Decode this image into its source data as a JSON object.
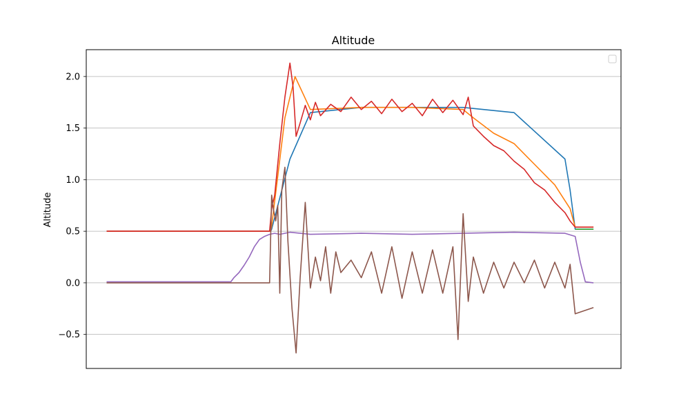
{
  "chart_data": {
    "type": "line",
    "title": "Altitude",
    "xlabel": "",
    "ylabel": "Altitude",
    "ylim": [
      -0.83,
      2.26
    ],
    "xlim": [
      -0.2,
      5.05
    ],
    "yticks": [
      -0.5,
      0.0,
      0.5,
      1.0,
      1.5,
      2.0
    ],
    "ytick_labels": [
      "−0.5",
      "0.0",
      "0.5",
      "1.0",
      "1.5",
      "2.0"
    ],
    "grid": "horizontal",
    "legend": "top-right, empty",
    "series": [
      {
        "color": "#1f77b4",
        "x": [
          0.0,
          1.61,
          1.62,
          1.8,
          2.0,
          2.5,
          3.0,
          3.5,
          4.0,
          4.5,
          4.55,
          4.6,
          4.78
        ],
        "y": [
          0.5,
          0.5,
          0.52,
          1.2,
          1.65,
          1.7,
          1.7,
          1.7,
          1.65,
          1.2,
          0.9,
          0.52,
          0.52
        ]
      },
      {
        "color": "#ff7f0e",
        "x": [
          0.0,
          1.61,
          1.62,
          1.75,
          1.85,
          2.0,
          2.5,
          3.0,
          3.5,
          3.6,
          3.8,
          4.0,
          4.2,
          4.4,
          4.55,
          4.6,
          4.78
        ],
        "y": [
          0.5,
          0.5,
          0.55,
          1.6,
          2.0,
          1.68,
          1.7,
          1.7,
          1.68,
          1.6,
          1.45,
          1.35,
          1.15,
          0.95,
          0.72,
          0.54,
          0.54
        ]
      },
      {
        "color": "#2ca02c",
        "x": [
          4.6,
          4.78
        ],
        "y": [
          0.52,
          0.52
        ]
      },
      {
        "color": "#d62728",
        "x": [
          0.0,
          1.6,
          1.62,
          1.65,
          1.7,
          1.75,
          1.8,
          1.83,
          1.86,
          1.9,
          1.95,
          2.0,
          2.05,
          2.1,
          2.2,
          2.3,
          2.4,
          2.5,
          2.6,
          2.7,
          2.8,
          2.9,
          3.0,
          3.1,
          3.2,
          3.3,
          3.4,
          3.5,
          3.55,
          3.6,
          3.7,
          3.8,
          3.9,
          4.0,
          4.1,
          4.2,
          4.3,
          4.4,
          4.5,
          4.55,
          4.6,
          4.78
        ],
        "y": [
          0.5,
          0.5,
          0.72,
          0.85,
          1.35,
          1.8,
          2.13,
          1.9,
          1.42,
          1.55,
          1.72,
          1.58,
          1.75,
          1.62,
          1.73,
          1.66,
          1.8,
          1.68,
          1.76,
          1.64,
          1.78,
          1.66,
          1.74,
          1.62,
          1.78,
          1.65,
          1.77,
          1.63,
          1.8,
          1.52,
          1.42,
          1.33,
          1.28,
          1.18,
          1.1,
          0.97,
          0.9,
          0.78,
          0.68,
          0.6,
          0.54,
          0.54
        ]
      },
      {
        "color": "#9467bd",
        "x": [
          0.0,
          1.22,
          1.25,
          1.3,
          1.35,
          1.4,
          1.45,
          1.5,
          1.55,
          1.6,
          1.65,
          1.7,
          1.8,
          2.0,
          2.5,
          3.0,
          3.5,
          4.0,
          4.5,
          4.6,
          4.65,
          4.7,
          4.78
        ],
        "y": [
          0.01,
          0.01,
          0.05,
          0.1,
          0.17,
          0.25,
          0.35,
          0.42,
          0.45,
          0.47,
          0.48,
          0.47,
          0.49,
          0.47,
          0.48,
          0.47,
          0.48,
          0.49,
          0.48,
          0.45,
          0.2,
          0.01,
          0.0
        ]
      },
      {
        "color": "#8c564b",
        "x": [
          0.0,
          1.6,
          1.62,
          1.64,
          1.66,
          1.68,
          1.7,
          1.72,
          1.75,
          1.78,
          1.82,
          1.86,
          1.9,
          1.95,
          2.0,
          2.05,
          2.1,
          2.15,
          2.2,
          2.25,
          2.3,
          2.4,
          2.5,
          2.6,
          2.7,
          2.8,
          2.9,
          3.0,
          3.1,
          3.2,
          3.3,
          3.4,
          3.45,
          3.5,
          3.55,
          3.6,
          3.7,
          3.8,
          3.9,
          4.0,
          4.1,
          4.2,
          4.3,
          4.4,
          4.5,
          4.55,
          4.6,
          4.78
        ],
        "y": [
          0.0,
          0.0,
          0.85,
          0.7,
          0.6,
          0.75,
          -0.1,
          0.9,
          1.12,
          0.4,
          -0.25,
          -0.68,
          0.05,
          0.78,
          -0.05,
          0.25,
          0.02,
          0.35,
          -0.1,
          0.3,
          0.1,
          0.22,
          0.05,
          0.3,
          -0.1,
          0.35,
          -0.15,
          0.3,
          -0.1,
          0.32,
          -0.1,
          0.35,
          -0.55,
          0.67,
          -0.18,
          0.25,
          -0.1,
          0.2,
          -0.05,
          0.2,
          0.0,
          0.22,
          -0.05,
          0.2,
          -0.05,
          0.18,
          -0.3,
          -0.24
        ]
      }
    ]
  }
}
